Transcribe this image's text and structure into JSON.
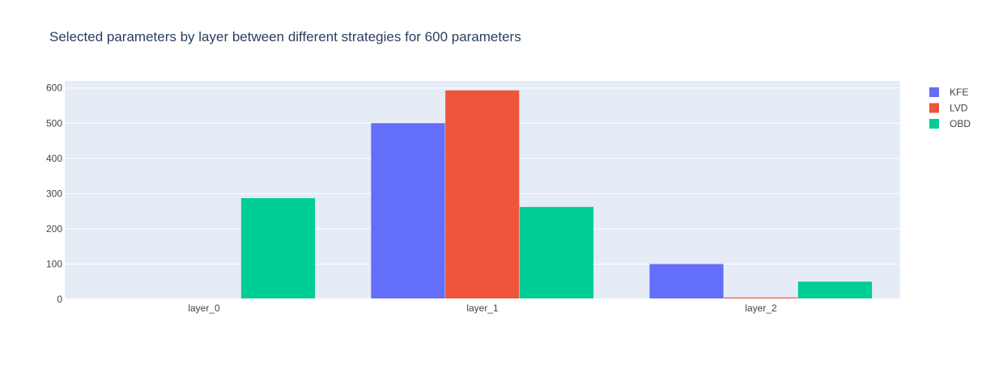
{
  "chart_data": {
    "type": "bar",
    "barmode": "group",
    "title": "Selected parameters by layer between different strategies for 600 parameters",
    "xlabel": "",
    "ylabel": "",
    "categories": [
      "layer_0",
      "layer_1",
      "layer_2"
    ],
    "ylim": [
      0,
      620
    ],
    "yticks": [
      0,
      100,
      200,
      300,
      400,
      500,
      600
    ],
    "grid": true,
    "legend_position": "top-right",
    "series": [
      {
        "name": "KFE",
        "color": "#636efa",
        "values": [
          0,
          500,
          100
        ]
      },
      {
        "name": "LVD",
        "color": "#ef553b",
        "values": [
          2,
          593,
          5
        ]
      },
      {
        "name": "OBD",
        "color": "#00cc96",
        "values": [
          287,
          262,
          50
        ]
      }
    ]
  },
  "style": {
    "plot_background": "#e5ecf6",
    "grid_color": "#ffffff",
    "text_color": "#2a3f5f",
    "tick_color": "#444444"
  }
}
